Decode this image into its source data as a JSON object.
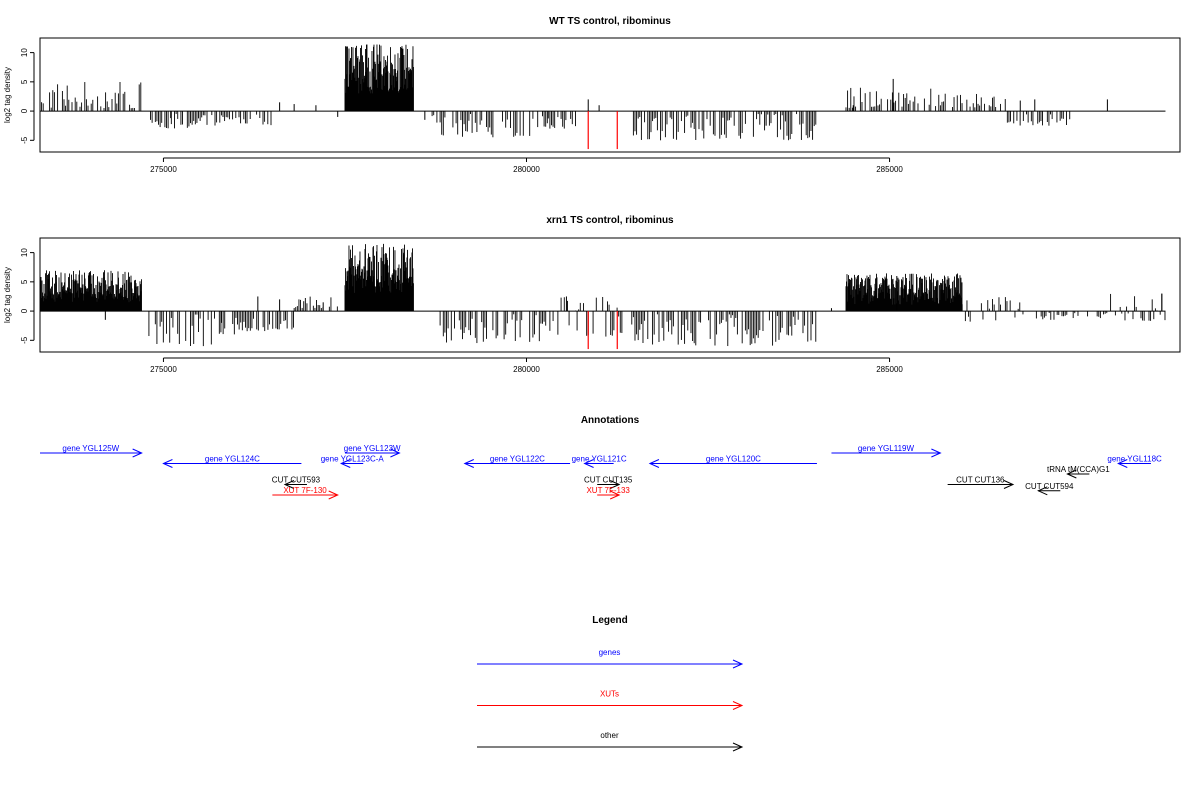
{
  "chart_data": [
    {
      "type": "bar",
      "title": "WT TS control, ribominus",
      "ylabel": "log2 tag density",
      "xlabel": "",
      "xlim": [
        273300,
        289000
      ],
      "ylim": [
        -7,
        12.5
      ],
      "yticks": [
        -5,
        0,
        5,
        10
      ],
      "xticks": [
        275000,
        280000,
        285000
      ],
      "xtick_labels": [
        "275000",
        "280000",
        "285000"
      ],
      "ytick_labels": [
        "-5",
        "0",
        "5",
        "10"
      ],
      "baseline_range": [
        273300,
        288800
      ],
      "colors": {
        "bars": "#000000",
        "highlight": "#ff0000"
      },
      "segments": [
        {
          "start": 273300,
          "end": 274700,
          "min": 0.5,
          "max": 5.0
        },
        {
          "start": 274800,
          "end": 275600,
          "min": -3.0,
          "max": -0.5
        },
        {
          "start": 275600,
          "end": 276500,
          "min": -2.5,
          "max": -0.5
        },
        {
          "start": 277500,
          "end": 278450,
          "min": 3.0,
          "max": 11.5,
          "dense": true
        },
        {
          "start": 278700,
          "end": 280300,
          "min": -4.5,
          "max": -0.5
        },
        {
          "start": 280300,
          "end": 280700,
          "min": -3.0,
          "max": -0.5
        },
        {
          "start": 281450,
          "end": 284000,
          "min": -5.0,
          "max": -0.5
        },
        {
          "start": 284400,
          "end": 285800,
          "min": 0.5,
          "max": 4.0
        },
        {
          "start": 285800,
          "end": 286600,
          "min": 0.5,
          "max": 3.0
        },
        {
          "start": 286600,
          "end": 287500,
          "min": -2.5,
          "max": -0.5
        }
      ],
      "spikes": [
        {
          "x": 276600,
          "y": 1.5
        },
        {
          "x": 276800,
          "y": 1.2
        },
        {
          "x": 277100,
          "y": 1.0
        },
        {
          "x": 275100,
          "y": -1.2
        },
        {
          "x": 277400,
          "y": -1.0
        },
        {
          "x": 278600,
          "y": -1.5
        },
        {
          "x": 280850,
          "y": 2.0
        },
        {
          "x": 281000,
          "y": 1.0
        },
        {
          "x": 285050,
          "y": 5.5
        },
        {
          "x": 284500,
          "y": 1.0
        },
        {
          "x": 286800,
          "y": 1.8
        },
        {
          "x": 287000,
          "y": 2.0
        },
        {
          "x": 288000,
          "y": 2.0
        },
        {
          "x": 283300,
          "y": -2.5
        }
      ],
      "highlights": [
        {
          "x": 280850,
          "y": -6.5
        },
        {
          "x": 281250,
          "y": -6.5
        }
      ]
    },
    {
      "type": "bar",
      "title": "xrn1 TS control, ribominus",
      "ylabel": "log2 tag density",
      "xlabel": "",
      "xlim": [
        273300,
        289000
      ],
      "ylim": [
        -7,
        12.5
      ],
      "yticks": [
        -5,
        0,
        5,
        10
      ],
      "xticks": [
        275000,
        280000,
        285000
      ],
      "xtick_labels": [
        "275000",
        "280000",
        "285000"
      ],
      "ytick_labels": [
        "-5",
        "0",
        "5",
        "10"
      ],
      "baseline_range": [
        273300,
        288800
      ],
      "colors": {
        "bars": "#000000",
        "highlight": "#ff0000"
      },
      "segments": [
        {
          "start": 273300,
          "end": 274700,
          "min": 1.5,
          "max": 7.0,
          "dense": true
        },
        {
          "start": 274800,
          "end": 275800,
          "min": -6.0,
          "max": -0.5
        },
        {
          "start": 275800,
          "end": 276800,
          "min": -4.0,
          "max": -0.5
        },
        {
          "start": 276800,
          "end": 277400,
          "min": 0.5,
          "max": 2.5
        },
        {
          "start": 277500,
          "end": 278450,
          "min": 3.0,
          "max": 11.5,
          "dense": true
        },
        {
          "start": 278700,
          "end": 280300,
          "min": -5.5,
          "max": -0.5
        },
        {
          "start": 280300,
          "end": 281350,
          "min": -4.5,
          "max": 2.5
        },
        {
          "start": 281450,
          "end": 284000,
          "min": -6.0,
          "max": -0.5
        },
        {
          "start": 284400,
          "end": 286000,
          "min": 1.0,
          "max": 6.5,
          "dense": true
        },
        {
          "start": 286000,
          "end": 286900,
          "min": -2.0,
          "max": 2.5
        },
        {
          "start": 287000,
          "end": 288000,
          "min": -1.5,
          "max": -0.3
        },
        {
          "start": 288000,
          "end": 288800,
          "min": -2.0,
          "max": 3.0
        }
      ],
      "spikes": [
        {
          "x": 274200,
          "y": -1.5
        },
        {
          "x": 276300,
          "y": 2.5
        },
        {
          "x": 276600,
          "y": 2.0
        },
        {
          "x": 277200,
          "y": 1.5
        },
        {
          "x": 280550,
          "y": 2.5
        },
        {
          "x": 284200,
          "y": 0.5
        },
        {
          "x": 285100,
          "y": 6.0
        },
        {
          "x": 288750,
          "y": 3.0
        }
      ],
      "highlights": [
        {
          "x": 280850,
          "y": -6.5
        },
        {
          "x": 281250,
          "y": -6.5
        }
      ]
    }
  ],
  "annotations": {
    "title": "Annotations",
    "xlim": [
      273300,
      289000
    ],
    "features": [
      {
        "label": "gene YGL125W",
        "start": 273300,
        "end": 274700,
        "row": 0,
        "dir": "right",
        "color": "#0000ff"
      },
      {
        "label": "gene YGL124C",
        "start": 275000,
        "end": 276900,
        "row": 1,
        "dir": "left",
        "color": "#0000ff"
      },
      {
        "label": "gene YGL123W",
        "start": 277500,
        "end": 278250,
        "row": 0,
        "dir": "right",
        "color": "#0000ff"
      },
      {
        "label": "gene YGL123C-A",
        "start": 277500,
        "end": 277700,
        "row": 1,
        "dir": "left",
        "color": "#0000ff"
      },
      {
        "label": "gene YGL122C",
        "start": 279150,
        "end": 280600,
        "row": 1,
        "dir": "left",
        "color": "#0000ff"
      },
      {
        "label": "gene YGL121C",
        "start": 280800,
        "end": 281200,
        "row": 1,
        "dir": "left",
        "color": "#0000ff"
      },
      {
        "label": "gene YGL120C",
        "start": 281700,
        "end": 284000,
        "row": 1,
        "dir": "left",
        "color": "#0000ff"
      },
      {
        "label": "gene YGL119W",
        "start": 284200,
        "end": 285700,
        "row": 0,
        "dir": "right",
        "color": "#0000ff"
      },
      {
        "label": "gene YGL118C",
        "start": 288150,
        "end": 288600,
        "row": 1,
        "dir": "left",
        "color": "#0000ff"
      },
      {
        "label": "tRNA tM(CCA)G1",
        "start": 287550,
        "end": 287650,
        "row": 2,
        "dir": "left",
        "color": "#000000"
      },
      {
        "label": "CUT CUT593",
        "start": 276750,
        "end": 276900,
        "row": 3,
        "dir": "left",
        "color": "#000000"
      },
      {
        "label": "XUT 7F-130",
        "start": 276500,
        "end": 277400,
        "row": 4,
        "dir": "right",
        "color": "#ff0000"
      },
      {
        "label": "CUT CUT135",
        "start": 281000,
        "end": 281250,
        "row": 3,
        "dir": "right",
        "color": "#000000"
      },
      {
        "label": "XUT 7F-133",
        "start": 281000,
        "end": 281250,
        "row": 4,
        "dir": "right",
        "color": "#ff0000"
      },
      {
        "label": "CUT CUT136",
        "start": 285800,
        "end": 286700,
        "row": 3,
        "dir": "right",
        "color": "#000000"
      },
      {
        "label": "CUT CUT594",
        "start": 287050,
        "end": 287350,
        "row": 3.6,
        "dir": "left",
        "color": "#000000"
      }
    ]
  },
  "legend": {
    "title": "Legend",
    "items": [
      {
        "label": "genes",
        "color": "#0000ff"
      },
      {
        "label": "XUTs",
        "color": "#ff0000"
      },
      {
        "label": "other",
        "color": "#000000"
      }
    ]
  }
}
